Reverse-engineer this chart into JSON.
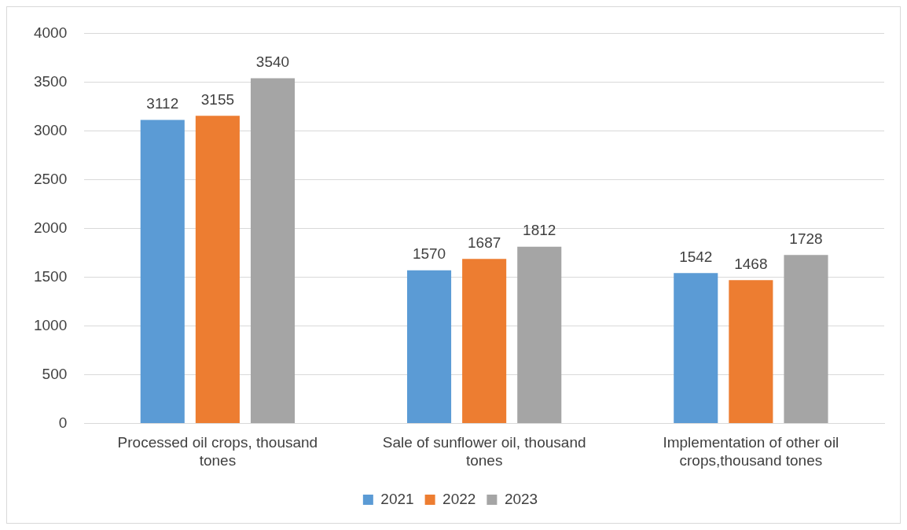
{
  "chart_data": {
    "type": "bar",
    "categories": [
      "Processed oil crops, thousand tones",
      "Sale of sunflower oil, thousand tones",
      "Implementation of other oil crops,thousand tones"
    ],
    "series": [
      {
        "name": "2021",
        "color": "#5b9bd5",
        "values": [
          3112,
          1570,
          1542
        ]
      },
      {
        "name": "2022",
        "color": "#ed7d31",
        "values": [
          3155,
          1687,
          1468
        ]
      },
      {
        "name": "2023",
        "color": "#a5a5a5",
        "values": [
          3540,
          1812,
          1728
        ]
      }
    ],
    "ylim": [
      0,
      4000
    ],
    "yticks": [
      0,
      500,
      1000,
      1500,
      2000,
      2500,
      3000,
      3500,
      4000
    ],
    "grid": "y",
    "legend": "bottom",
    "data_labels": true
  }
}
